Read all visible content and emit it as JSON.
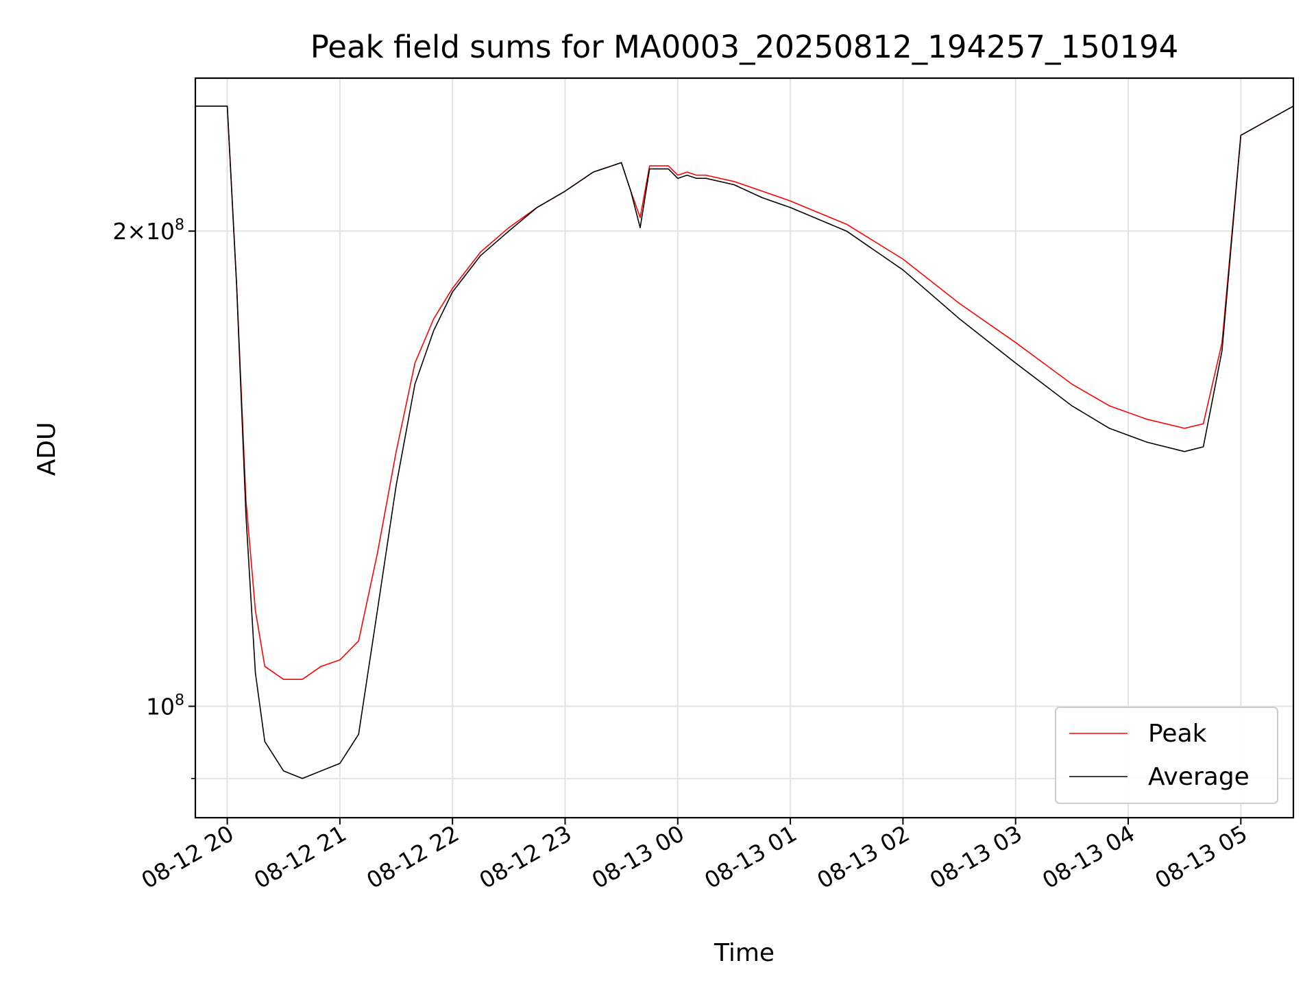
{
  "chart_data": {
    "type": "line",
    "title": "Peak field sums for MA0003_20250812_194257_150194",
    "xlabel": "Time",
    "ylabel": "ADU",
    "y_scale": "log",
    "ylim": [
      85000000,
      250000000
    ],
    "xlim": [
      "2025-08-12 19:43",
      "2025-08-13 05:28"
    ],
    "grid": true,
    "legend_position": "lower right",
    "x_ticks": [
      {
        "x": "2025-08-12 20:00",
        "label": "08-12 20"
      },
      {
        "x": "2025-08-12 21:00",
        "label": "08-12 21"
      },
      {
        "x": "2025-08-12 22:00",
        "label": "08-12 22"
      },
      {
        "x": "2025-08-12 23:00",
        "label": "08-12 23"
      },
      {
        "x": "2025-08-13 00:00",
        "label": "08-13 00"
      },
      {
        "x": "2025-08-13 01:00",
        "label": "08-13 01"
      },
      {
        "x": "2025-08-13 02:00",
        "label": "08-13 02"
      },
      {
        "x": "2025-08-13 03:00",
        "label": "08-13 03"
      },
      {
        "x": "2025-08-13 04:00",
        "label": "08-13 04"
      },
      {
        "x": "2025-08-13 05:00",
        "label": "08-13 05"
      }
    ],
    "y_major_ticks": [
      {
        "y": 100000000,
        "label": "10",
        "exp": "8"
      },
      {
        "y": 200000000,
        "label": "2×10",
        "exp": "8"
      }
    ],
    "y_minor_ticks": [
      90000000
    ],
    "series": [
      {
        "name": "Peak",
        "color": "#ff0000",
        "x": [
          "2025-08-12 19:43",
          "2025-08-12 20:00",
          "2025-08-12 20:05",
          "2025-08-12 20:10",
          "2025-08-12 20:15",
          "2025-08-12 20:20",
          "2025-08-12 20:30",
          "2025-08-12 20:40",
          "2025-08-12 20:50",
          "2025-08-12 21:00",
          "2025-08-12 21:10",
          "2025-08-12 21:20",
          "2025-08-12 21:30",
          "2025-08-12 21:40",
          "2025-08-12 21:50",
          "2025-08-12 22:00",
          "2025-08-12 22:15",
          "2025-08-12 22:30",
          "2025-08-12 22:45",
          "2025-08-12 23:00",
          "2025-08-12 23:15",
          "2025-08-12 23:30",
          "2025-08-12 23:35",
          "2025-08-12 23:40",
          "2025-08-12 23:45",
          "2025-08-12 23:50",
          "2025-08-12 23:55",
          "2025-08-13 00:00",
          "2025-08-13 00:05",
          "2025-08-13 00:10",
          "2025-08-13 00:15",
          "2025-08-13 00:30",
          "2025-08-13 00:45",
          "2025-08-13 01:00",
          "2025-08-13 01:30",
          "2025-08-13 02:00",
          "2025-08-13 02:30",
          "2025-08-13 03:00",
          "2025-08-13 03:30",
          "2025-08-13 03:50",
          "2025-08-13 04:10",
          "2025-08-13 04:30",
          "2025-08-13 04:40",
          "2025-08-13 04:50",
          "2025-08-13 05:00",
          "2025-08-13 05:28"
        ],
        "y": [
          240000000,
          240000000,
          185000000,
          135000000,
          115000000,
          106000000,
          104000000,
          104000000,
          106000000,
          107000000,
          110000000,
          125000000,
          145000000,
          165000000,
          176000000,
          184000000,
          194000000,
          201000000,
          207000000,
          212000000,
          218000000,
          221000000,
          212000000,
          204000000,
          220000000,
          220000000,
          220000000,
          217000000,
          218000000,
          217000000,
          217000000,
          215000000,
          212000000,
          209000000,
          202000000,
          192000000,
          180000000,
          170000000,
          160000000,
          155000000,
          152000000,
          150000000,
          151000000,
          170000000,
          230000000,
          240000000
        ]
      },
      {
        "name": "Average",
        "color": "#000000",
        "x": [
          "2025-08-12 19:43",
          "2025-08-12 20:00",
          "2025-08-12 20:05",
          "2025-08-12 20:10",
          "2025-08-12 20:15",
          "2025-08-12 20:20",
          "2025-08-12 20:30",
          "2025-08-12 20:40",
          "2025-08-12 20:50",
          "2025-08-12 21:00",
          "2025-08-12 21:10",
          "2025-08-12 21:20",
          "2025-08-12 21:30",
          "2025-08-12 21:40",
          "2025-08-12 21:50",
          "2025-08-12 22:00",
          "2025-08-12 22:15",
          "2025-08-12 22:30",
          "2025-08-12 22:45",
          "2025-08-12 23:00",
          "2025-08-12 23:15",
          "2025-08-12 23:30",
          "2025-08-12 23:35",
          "2025-08-12 23:40",
          "2025-08-12 23:45",
          "2025-08-12 23:50",
          "2025-08-12 23:55",
          "2025-08-13 00:00",
          "2025-08-13 00:05",
          "2025-08-13 00:10",
          "2025-08-13 00:15",
          "2025-08-13 00:30",
          "2025-08-13 00:45",
          "2025-08-13 01:00",
          "2025-08-13 01:30",
          "2025-08-13 02:00",
          "2025-08-13 02:30",
          "2025-08-13 03:00",
          "2025-08-13 03:30",
          "2025-08-13 03:50",
          "2025-08-13 04:10",
          "2025-08-13 04:30",
          "2025-08-13 04:40",
          "2025-08-13 04:50",
          "2025-08-13 05:00",
          "2025-08-13 05:28"
        ],
        "y": [
          240000000,
          240000000,
          185000000,
          132000000,
          105000000,
          95000000,
          91000000,
          90000000,
          91000000,
          92000000,
          96000000,
          115000000,
          138000000,
          160000000,
          173000000,
          183000000,
          193000000,
          200000000,
          207000000,
          212000000,
          218000000,
          221000000,
          212000000,
          201000000,
          219000000,
          219000000,
          219000000,
          216000000,
          217000000,
          216000000,
          216000000,
          214000000,
          210000000,
          207000000,
          200000000,
          189000000,
          176000000,
          165000000,
          155000000,
          150000000,
          147000000,
          145000000,
          146000000,
          168000000,
          230000000,
          240000000
        ]
      }
    ]
  }
}
